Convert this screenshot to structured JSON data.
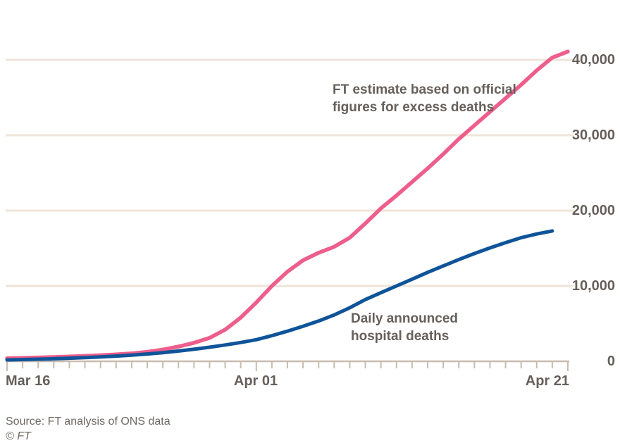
{
  "chart_data": {
    "type": "line",
    "title": "",
    "xlabel": "",
    "ylabel": "",
    "ylim": [
      0,
      43000
    ],
    "grid": "horizontal",
    "legend_position": "inline-annotations",
    "x_axis": {
      "total_days": 36,
      "tick_interval_days": 1,
      "major_tick_days": [
        0,
        16,
        36
      ],
      "tick_labels": [
        {
          "label": "Mar 16",
          "day": 0,
          "align": "left"
        },
        {
          "label": "Apr 01",
          "day": 16,
          "align": "center"
        },
        {
          "label": "Apr 21",
          "day": 36,
          "align": "right"
        }
      ]
    },
    "y_ticks": [
      {
        "label": "40,000",
        "value": 40000
      },
      {
        "label": "30,000",
        "value": 30000
      },
      {
        "label": "20,000",
        "value": 20000
      },
      {
        "label": "10,000",
        "value": 10000
      },
      {
        "label": "0",
        "value": 0
      }
    ],
    "series": [
      {
        "name": "FT estimate based on official figures for excess deaths",
        "color": "#ed5e8c",
        "stroke_width": 5.5,
        "start_day": 0,
        "values": [
          400,
          450,
          500,
          560,
          630,
          710,
          800,
          910,
          1050,
          1250,
          1550,
          1950,
          2450,
          3100,
          4200,
          5800,
          7800,
          10000,
          11900,
          13400,
          14400,
          15200,
          16400,
          18300,
          20300,
          22000,
          23800,
          25600,
          27500,
          29500,
          31300,
          33100,
          34900,
          36700,
          38600,
          40300,
          41100
        ]
      },
      {
        "name": "Daily announced hospital deaths",
        "color": "#0f5499",
        "stroke_width": 5,
        "start_day": 0,
        "values": [
          190,
          230,
          280,
          340,
          410,
          490,
          580,
          690,
          820,
          970,
          1150,
          1360,
          1600,
          1870,
          2170,
          2500,
          2870,
          3400,
          4000,
          4650,
          5350,
          6150,
          7100,
          8200,
          9100,
          10000,
          10900,
          11800,
          12650,
          13500,
          14300,
          15050,
          15750,
          16400,
          16900,
          17300
        ]
      }
    ],
    "annotations": [
      {
        "series": "ft-estimate",
        "lines": [
          "FT estimate based on official",
          "figures for excess deaths"
        ]
      },
      {
        "series": "hospital-deaths",
        "lines": [
          "Daily announced",
          "hospital deaths"
        ]
      }
    ]
  },
  "palette": {
    "background": "#ffffff",
    "gridline": "#f0e4d9",
    "axis": "#c8bcb1",
    "text": "#66605b",
    "pink": "#ed5e8c",
    "blue": "#0f5499"
  },
  "footer": {
    "source": "Source: FT analysis of ONS data",
    "copyright": "© FT"
  }
}
